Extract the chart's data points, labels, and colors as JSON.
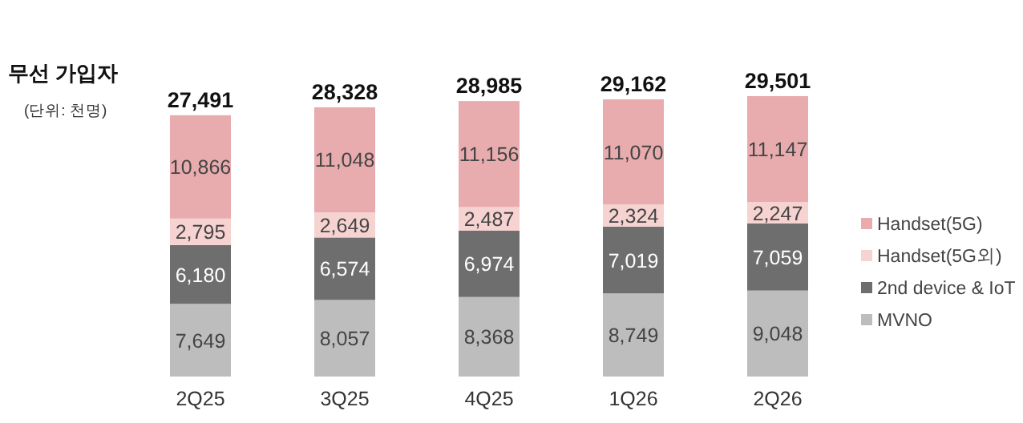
{
  "chart_data": {
    "type": "bar",
    "title": "무선 가입자",
    "annotations": [
      "(단위: 천명)"
    ],
    "stacked": true,
    "legend": "right",
    "categories": [
      "2Q25",
      "3Q25",
      "4Q25",
      "1Q26",
      "2Q26"
    ],
    "series": [
      {
        "name": "MVNO",
        "color": "#bdbdbd",
        "values": [
          7649,
          8057,
          8368,
          8749,
          9048
        ],
        "value_labels": [
          "7,649",
          "8,057",
          "8,368",
          "8,749",
          "9,048"
        ]
      },
      {
        "name": "2nd device & IoT",
        "color": "#6e6e6e",
        "values": [
          6180,
          6574,
          6974,
          7019,
          7059
        ],
        "value_labels": [
          "6,180",
          "6,574",
          "6,974",
          "7,019",
          "7,059"
        ]
      },
      {
        "name": "Handset(5G외)",
        "color": "#f6d3d1",
        "values": [
          2795,
          2649,
          2487,
          2324,
          2247
        ],
        "value_labels": [
          "2,795",
          "2,649",
          "2,487",
          "2,324",
          "2,247"
        ]
      },
      {
        "name": "Handset(5G)",
        "color": "#e8acae",
        "values": [
          10866,
          11048,
          11156,
          11070,
          11147
        ],
        "value_labels": [
          "10,866",
          "11,048",
          "11,156",
          "11,070",
          "11,147"
        ]
      }
    ],
    "totals": [
      "27,491",
      "28,328",
      "28,985",
      "29,162",
      "29,501"
    ]
  }
}
